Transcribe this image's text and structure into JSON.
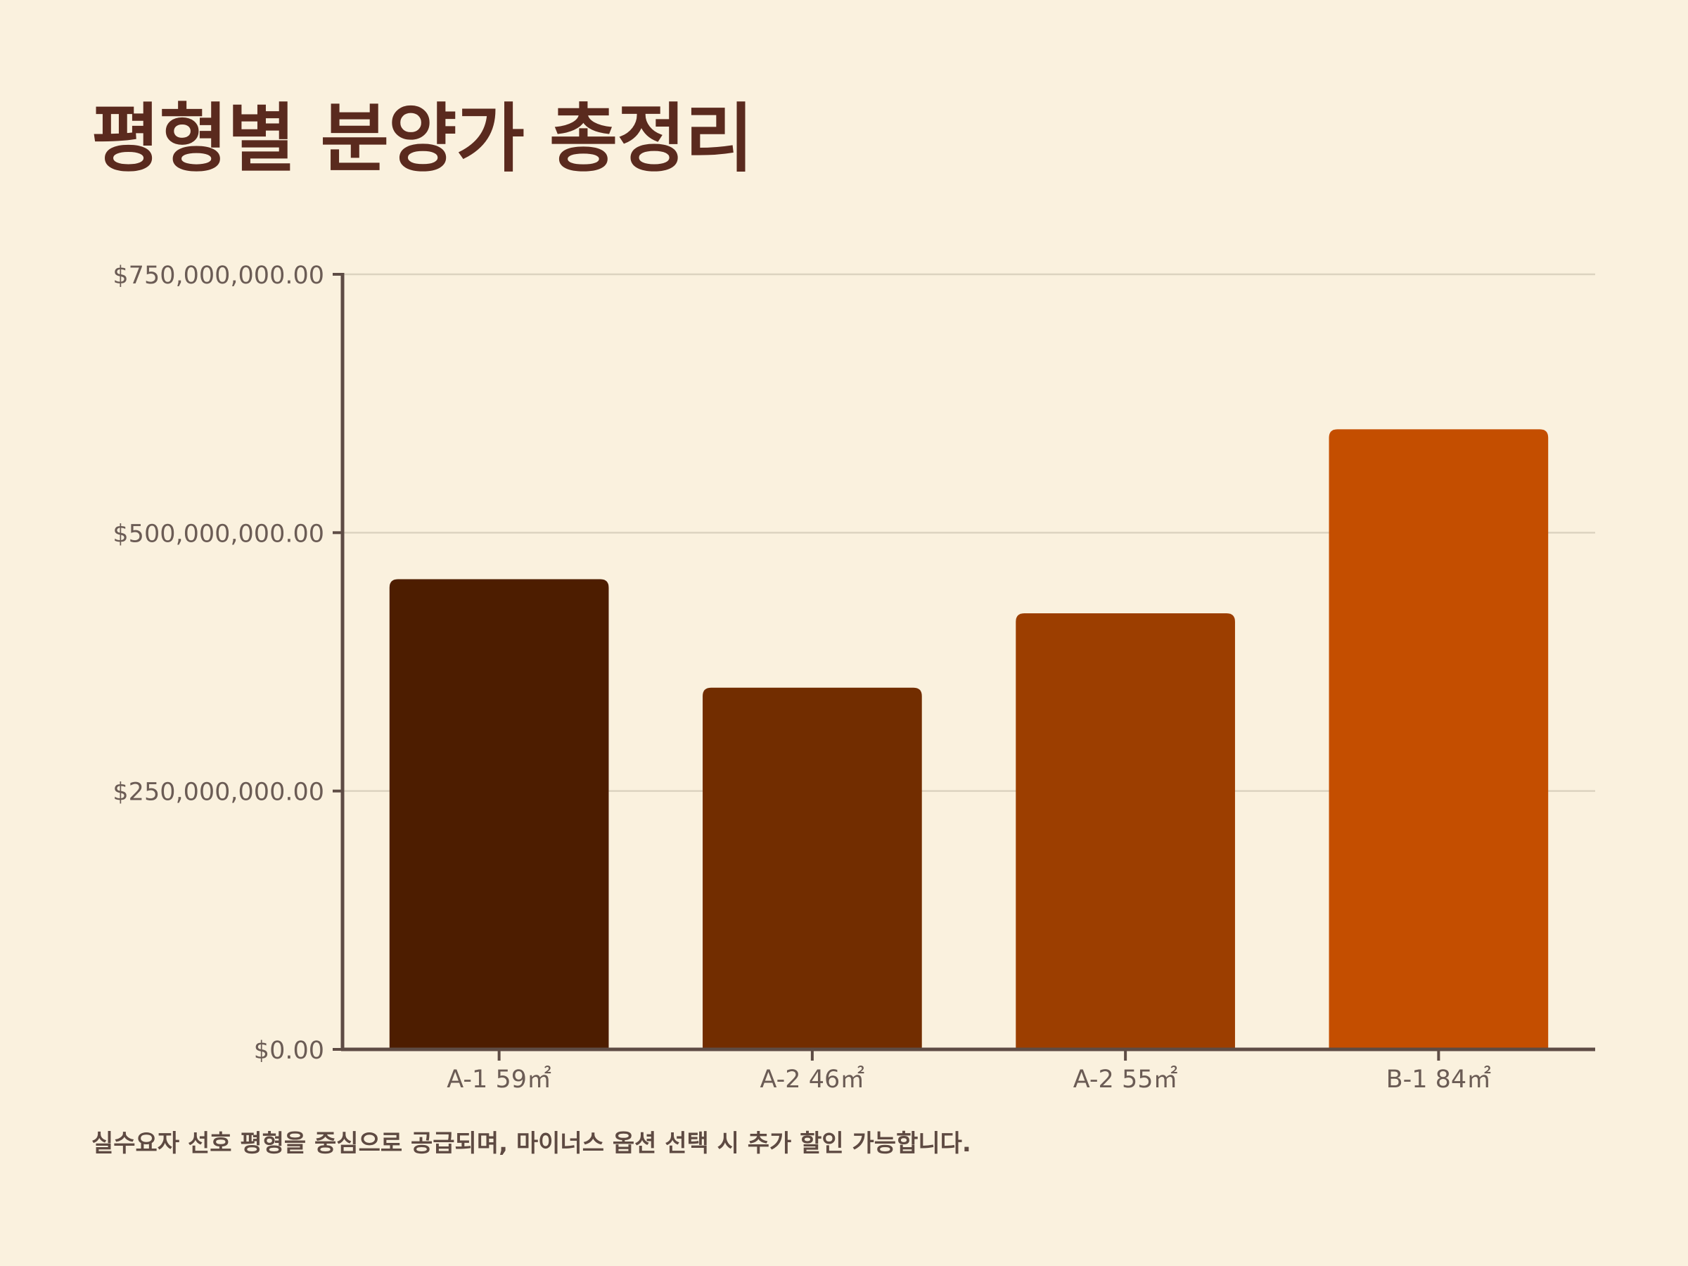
{
  "title": "평형별 분양가 총정리",
  "footnote": "실수요자 선호 평형을 중심으로 공급되며, 마이너스 옵션 선택 시 추가 할인 가능합니다.",
  "colors": {
    "background": "#FAF1DE",
    "title": "#5A2A1E",
    "axis": "#5E4C45",
    "grid": "#DCD3C0",
    "tick_text": "#6B5C55",
    "bars": [
      "#4D1D00",
      "#722D00",
      "#9C3E00",
      "#C44E00"
    ]
  },
  "chart_data": {
    "type": "bar",
    "title": "평형별 분양가 총정리",
    "categories": [
      "A-1 59㎡",
      "A-2 46㎡",
      "A-2 55㎡",
      "B-1 84㎡"
    ],
    "values": [
      455000000,
      350000000,
      422000000,
      600000000
    ],
    "ylim": [
      0,
      750000000
    ],
    "yticks": [
      0,
      250000000,
      500000000,
      750000000
    ],
    "ytick_labels": [
      "$0.00",
      "$250,000,000.00",
      "$500,000,000.00",
      "$750,000,000.00"
    ],
    "xlabel": "",
    "ylabel": "",
    "grid": true,
    "legend": "none"
  }
}
